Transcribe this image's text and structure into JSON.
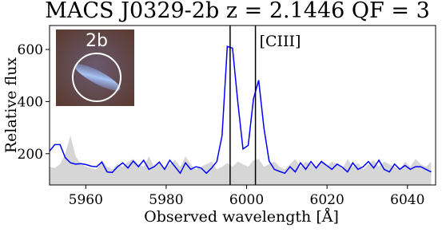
{
  "chart_data": {
    "type": "line",
    "title": "MACS J0329-2b z = 2.1446 QF = 3",
    "x_label": "Observed wavelength [Å]",
    "y_label": "Relative flux",
    "annotation": "[CIII]",
    "inset_label": "2b",
    "x": [
      5951.0,
      5952.3,
      5953.6,
      5954.9,
      5956.2,
      5957.5,
      5958.8,
      5960.1,
      5961.4,
      5962.7,
      5964.0,
      5965.3,
      5966.6,
      5967.9,
      5969.2,
      5970.5,
      5971.8,
      5973.1,
      5974.4,
      5975.7,
      5977.0,
      5978.3,
      5979.6,
      5980.9,
      5982.2,
      5983.5,
      5984.8,
      5986.1,
      5987.4,
      5988.7,
      5990.0,
      5991.3,
      5992.6,
      5993.9,
      5995.2,
      5996.5,
      5997.8,
      5999.1,
      6000.4,
      6001.7,
      6003.0,
      6004.3,
      6005.6,
      6006.9,
      6008.2,
      6009.5,
      6010.8,
      6012.1,
      6013.4,
      6014.7,
      6016.0,
      6017.3,
      6018.6,
      6019.9,
      6021.2,
      6022.5,
      6023.8,
      6025.1,
      6026.4,
      6027.7,
      6029.0,
      6030.3,
      6031.6,
      6032.9,
      6034.2,
      6035.5,
      6036.8,
      6038.1,
      6039.4,
      6040.7,
      6042.0,
      6043.3,
      6044.6,
      6045.9
    ],
    "series": [
      {
        "style": "area",
        "color": "#d6d6d6",
        "values": [
          150,
          145,
          160,
          200,
          270,
          190,
          160,
          150,
          145,
          140,
          175,
          150,
          140,
          160,
          150,
          170,
          180,
          160,
          150,
          190,
          150,
          170,
          145,
          160,
          175,
          150,
          190,
          160,
          140,
          150,
          160,
          170,
          140,
          150,
          165,
          150,
          170,
          160,
          150,
          175,
          180,
          150,
          160,
          170,
          150,
          140,
          160,
          180,
          150,
          170,
          160,
          150,
          175,
          150,
          170,
          160,
          140,
          180,
          150,
          165,
          140,
          160,
          175,
          150,
          170,
          160,
          150,
          140,
          170,
          150,
          180,
          160,
          150,
          170
        ]
      },
      {
        "style": "line",
        "color": "#0000ff",
        "values": [
          210,
          235,
          235,
          185,
          165,
          160,
          162,
          158,
          152,
          150,
          168,
          130,
          128,
          150,
          165,
          145,
          172,
          150,
          175,
          140,
          150,
          168,
          140,
          175,
          150,
          125,
          165,
          140,
          150,
          145,
          125,
          145,
          170,
          270,
          612,
          605,
          400,
          218,
          232,
          410,
          482,
          300,
          172,
          140,
          132,
          125,
          150,
          130,
          165,
          140,
          170,
          145,
          170,
          155,
          140,
          160,
          148,
          130,
          165,
          140,
          150,
          170,
          145,
          175,
          140,
          130,
          160,
          140,
          155,
          140,
          150,
          150,
          140,
          130
        ]
      }
    ],
    "vlines": [
      5995.9,
      6002.2
    ],
    "xlim": [
      5951,
      6047
    ],
    "ylim": [
      80,
      692
    ],
    "xticks": [
      5960,
      5980,
      6000,
      6020,
      6040
    ],
    "yticks": [
      200,
      400,
      600
    ]
  }
}
